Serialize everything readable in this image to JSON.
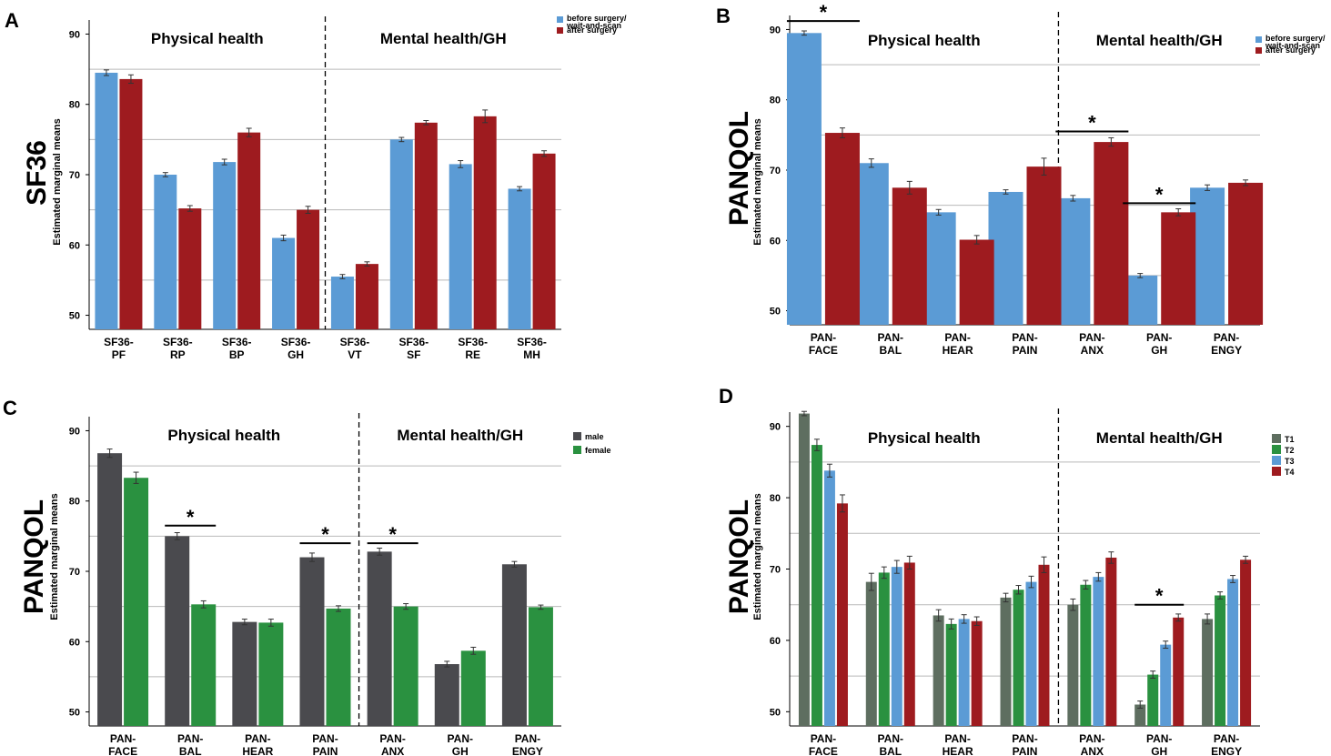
{
  "chart_data": [
    {
      "panel": "A",
      "type": "bar",
      "title": "SF36",
      "ylabel": "Estimated marginal means",
      "ylim": [
        48,
        92
      ],
      "yticks": [
        50,
        60,
        70,
        80,
        90
      ],
      "gridlines": [
        55,
        65,
        75,
        85
      ],
      "categories": [
        [
          "SF36-",
          "PF"
        ],
        [
          "SF36-",
          "RP"
        ],
        [
          "SF36-",
          "BP"
        ],
        [
          "SF36-",
          "GH"
        ],
        [
          "SF36-",
          "VT"
        ],
        [
          "SF36-",
          "SF"
        ],
        [
          "SF36-",
          "RE"
        ],
        [
          "SF36-",
          "MH"
        ]
      ],
      "sections": [
        {
          "label": "Physical health",
          "range": [
            0,
            3
          ]
        },
        {
          "label": "Mental health/GH",
          "range": [
            4,
            7
          ]
        }
      ],
      "divider_after": 3,
      "legend": {
        "position": "top-right"
      },
      "series": [
        {
          "name": "before surgery/ wait-and-scan",
          "color": "#5b9bd5",
          "values": [
            84.5,
            70.0,
            71.8,
            61.0,
            55.5,
            75.0,
            71.5,
            68.0
          ],
          "errors": [
            0.4,
            0.3,
            0.4,
            0.4,
            0.3,
            0.3,
            0.5,
            0.3
          ]
        },
        {
          "name": "after surgery",
          "color": "#9e1b1f",
          "values": [
            83.6,
            65.2,
            76.0,
            65.0,
            57.3,
            77.4,
            78.3,
            73.0
          ],
          "errors": [
            0.6,
            0.4,
            0.6,
            0.5,
            0.3,
            0.3,
            0.9,
            0.4
          ]
        }
      ],
      "significance": []
    },
    {
      "panel": "B",
      "type": "bar",
      "title": "PANQOL",
      "ylabel": "Estimated marginal means",
      "ylim": [
        48,
        92
      ],
      "yticks": [
        50,
        60,
        70,
        80,
        90
      ],
      "gridlines": [
        55,
        65,
        75,
        85
      ],
      "categories": [
        [
          "PAN-",
          "FACE"
        ],
        [
          "PAN-",
          "BAL"
        ],
        [
          "PAN-",
          "HEAR"
        ],
        [
          "PAN-",
          "PAIN"
        ],
        [
          "PAN-",
          "ANX"
        ],
        [
          "PAN-",
          "GH"
        ],
        [
          "PAN-",
          "ENGY"
        ]
      ],
      "sections": [
        {
          "label": "Physical health",
          "range": [
            0,
            3
          ]
        },
        {
          "label": "Mental health/GH",
          "range": [
            4,
            6
          ]
        }
      ],
      "divider_after": 3,
      "legend": {
        "position": "top-right"
      },
      "series": [
        {
          "name": "before surgery/ wait-and-scan",
          "color": "#5b9bd5",
          "values": [
            89.5,
            71.0,
            64.0,
            66.9,
            66.0,
            55.0,
            67.5
          ],
          "errors": [
            0.3,
            0.6,
            0.4,
            0.3,
            0.4,
            0.3,
            0.4
          ]
        },
        {
          "name": "after surgery",
          "color": "#9e1b1f",
          "values": [
            75.3,
            67.5,
            60.1,
            70.5,
            74.0,
            64.0,
            68.2
          ],
          "errors": [
            0.7,
            0.9,
            0.6,
            1.2,
            0.6,
            0.5,
            0.4
          ]
        }
      ],
      "significance": [
        {
          "category": 0,
          "y": 91.2,
          "symbol": "*"
        },
        {
          "category": 4,
          "y": 75.5,
          "symbol": "*"
        },
        {
          "category": 5,
          "y": 65.3,
          "symbol": "*"
        }
      ]
    },
    {
      "panel": "C",
      "type": "bar",
      "title": "PANQOL",
      "ylabel": "Estimated marginal means",
      "ylim": [
        48,
        92
      ],
      "yticks": [
        50,
        60,
        70,
        80,
        90
      ],
      "gridlines": [
        55,
        65,
        75,
        85
      ],
      "categories": [
        [
          "PAN-",
          "FACE"
        ],
        [
          "PAN-",
          "BAL"
        ],
        [
          "PAN-",
          "HEAR"
        ],
        [
          "PAN-",
          "PAIN"
        ],
        [
          "PAN-",
          "ANX"
        ],
        [
          "PAN-",
          "GH"
        ],
        [
          "PAN-",
          "ENGY"
        ]
      ],
      "sections": [
        {
          "label": "Physical health",
          "range": [
            0,
            3
          ]
        },
        {
          "label": "Mental health/GH",
          "range": [
            4,
            6
          ]
        }
      ],
      "divider_after": 3,
      "legend": {
        "position": "top-right"
      },
      "series": [
        {
          "name": "male",
          "color": "#4a4a4e",
          "values": [
            86.8,
            75.0,
            62.8,
            72.0,
            72.8,
            56.8,
            71.0
          ],
          "errors": [
            0.6,
            0.5,
            0.4,
            0.6,
            0.5,
            0.4,
            0.4
          ]
        },
        {
          "name": "female",
          "color": "#2a9140",
          "values": [
            83.3,
            65.3,
            62.7,
            64.7,
            65.0,
            58.7,
            64.9
          ],
          "errors": [
            0.8,
            0.5,
            0.5,
            0.4,
            0.4,
            0.5,
            0.3
          ]
        }
      ],
      "significance": [
        {
          "category": 1,
          "y": 76.5,
          "symbol": "*"
        },
        {
          "category": 3,
          "y": 74.0,
          "symbol": "*"
        },
        {
          "category": 4,
          "y": 74.0,
          "symbol": "*"
        }
      ]
    },
    {
      "panel": "D",
      "type": "bar",
      "title": "PANQOL",
      "ylabel": "Estimated marginal means",
      "ylim": [
        48,
        92
      ],
      "yticks": [
        50,
        60,
        70,
        80,
        90
      ],
      "gridlines": [
        55,
        65,
        75,
        85
      ],
      "categories": [
        [
          "PAN-",
          "FACE"
        ],
        [
          "PAN-",
          "BAL"
        ],
        [
          "PAN-",
          "HEAR"
        ],
        [
          "PAN-",
          "PAIN"
        ],
        [
          "PAN-",
          "ANX"
        ],
        [
          "PAN-",
          "GH"
        ],
        [
          "PAN-",
          "ENGY"
        ]
      ],
      "sections": [
        {
          "label": "Physical health",
          "range": [
            0,
            3
          ]
        },
        {
          "label": "Mental health/GH",
          "range": [
            4,
            6
          ]
        }
      ],
      "divider_after": 3,
      "legend": {
        "position": "top-right"
      },
      "series": [
        {
          "name": "T1",
          "color": "#5e6e60",
          "values": [
            91.8,
            68.2,
            63.5,
            66.0,
            65.0,
            51.0,
            63.0
          ],
          "errors": [
            0.3,
            1.2,
            0.8,
            0.6,
            0.8,
            0.5,
            0.7
          ]
        },
        {
          "name": "T2",
          "color": "#2a9140",
          "values": [
            87.4,
            69.5,
            62.3,
            67.1,
            67.8,
            55.2,
            66.3
          ],
          "errors": [
            0.8,
            0.8,
            0.7,
            0.6,
            0.6,
            0.5,
            0.5
          ]
        },
        {
          "name": "T3",
          "color": "#5b9bd5",
          "values": [
            83.8,
            70.3,
            63.0,
            68.2,
            68.9,
            59.4,
            68.6
          ],
          "errors": [
            0.9,
            0.9,
            0.6,
            0.8,
            0.6,
            0.5,
            0.5
          ]
        },
        {
          "name": "T4",
          "color": "#9e1b1f",
          "values": [
            79.2,
            70.9,
            62.7,
            70.6,
            71.6,
            63.2,
            71.3
          ],
          "errors": [
            1.2,
            0.9,
            0.6,
            1.1,
            0.8,
            0.5,
            0.5
          ]
        }
      ],
      "significance": [
        {
          "category": 5,
          "y": 65.0,
          "symbol": "*"
        }
      ]
    }
  ]
}
